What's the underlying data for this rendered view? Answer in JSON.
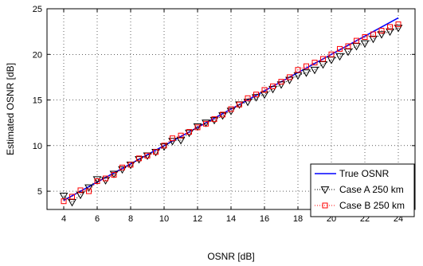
{
  "chart_data": {
    "type": "line",
    "title": "",
    "xlabel": "OSNR [dB]",
    "ylabel": "Estimated OSNR [dB]",
    "xlim": [
      3,
      25
    ],
    "ylim": [
      3,
      25
    ],
    "xticks": [
      4,
      6,
      8,
      10,
      12,
      14,
      16,
      18,
      20,
      22,
      24
    ],
    "yticks": [
      5,
      10,
      15,
      20,
      25
    ],
    "grid": true,
    "legend_position": "bottom-right",
    "series": [
      {
        "name": "True OSNR",
        "color": "#0000ff",
        "line_style": "solid",
        "marker": "none",
        "x": [
          4,
          24
        ],
        "y": [
          4,
          24
        ]
      },
      {
        "name": "Case A 250 km",
        "color": "#000000",
        "line_style": "dotted",
        "marker": "triangle-down",
        "x": [
          4.0,
          4.5,
          5.0,
          5.5,
          6.0,
          6.5,
          7.0,
          7.5,
          8.0,
          8.5,
          9.0,
          9.5,
          10.0,
          10.5,
          11.0,
          11.5,
          12.0,
          12.5,
          13.0,
          13.5,
          14.0,
          14.5,
          15.0,
          15.5,
          16.0,
          16.5,
          17.0,
          17.5,
          18.0,
          18.5,
          19.0,
          19.5,
          20.0,
          20.5,
          21.0,
          21.5,
          22.0,
          22.5,
          23.0,
          23.5,
          24.0
        ],
        "y": [
          4.5,
          3.8,
          4.6,
          5.4,
          6.3,
          6.2,
          6.9,
          7.4,
          7.9,
          8.5,
          8.9,
          9.3,
          9.9,
          10.5,
          10.6,
          11.4,
          12.1,
          12.5,
          12.8,
          13.3,
          13.8,
          14.5,
          14.8,
          15.3,
          15.6,
          16.2,
          16.7,
          17.2,
          17.7,
          18.0,
          18.3,
          18.9,
          19.4,
          19.8,
          20.3,
          20.9,
          21.2,
          21.7,
          22.2,
          22.5,
          22.9
        ]
      },
      {
        "name": "Case B 250 km",
        "color": "#ff0000",
        "line_style": "dotted",
        "marker": "square",
        "x": [
          4.0,
          4.5,
          5.0,
          5.5,
          6.0,
          6.5,
          7.0,
          7.5,
          8.0,
          8.5,
          9.0,
          9.5,
          10.0,
          10.5,
          11.0,
          11.5,
          12.0,
          12.5,
          13.0,
          13.5,
          14.0,
          14.5,
          15.0,
          15.5,
          16.0,
          16.5,
          17.0,
          17.5,
          18.0,
          18.5,
          19.0,
          19.5,
          20.0,
          20.5,
          21.0,
          21.5,
          22.0,
          22.5,
          23.0,
          23.5,
          24.0
        ],
        "y": [
          3.9,
          4.4,
          5.1,
          5.0,
          6.1,
          6.4,
          6.8,
          7.6,
          7.9,
          8.6,
          8.9,
          9.3,
          10.0,
          10.8,
          11.1,
          11.5,
          12.0,
          12.4,
          12.9,
          13.4,
          14.0,
          14.5,
          15.2,
          15.6,
          16.1,
          16.5,
          17.0,
          17.5,
          18.3,
          18.7,
          19.1,
          19.5,
          20.0,
          20.6,
          20.9,
          21.5,
          21.9,
          22.2,
          22.6,
          23.0,
          23.3
        ]
      }
    ]
  }
}
